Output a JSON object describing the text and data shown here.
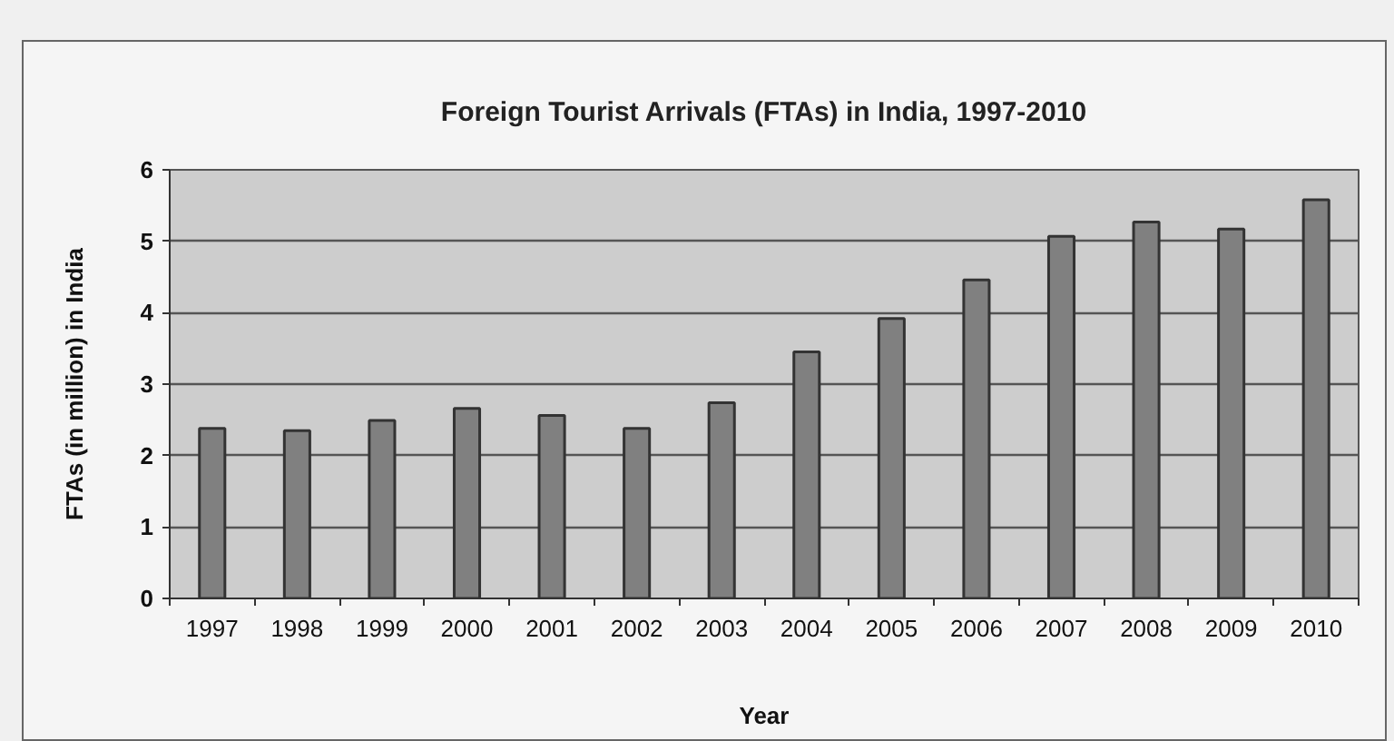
{
  "chart_data": {
    "type": "bar",
    "title": "Foreign Tourist Arrivals (FTAs) in India, 1997-2010",
    "xlabel": "Year",
    "ylabel": "FTAs (in million) in India",
    "categories": [
      "1997",
      "1998",
      "1999",
      "2000",
      "2001",
      "2002",
      "2003",
      "2004",
      "2005",
      "2006",
      "2007",
      "2008",
      "2009",
      "2010"
    ],
    "values": [
      2.38,
      2.35,
      2.49,
      2.66,
      2.56,
      2.38,
      2.74,
      3.45,
      3.92,
      4.46,
      5.07,
      5.27,
      5.17,
      5.58
    ],
    "color": "#808080",
    "ylim": [
      0,
      6
    ],
    "yticks": [
      0,
      1,
      2,
      3,
      4,
      5,
      6
    ],
    "grid": "y"
  }
}
